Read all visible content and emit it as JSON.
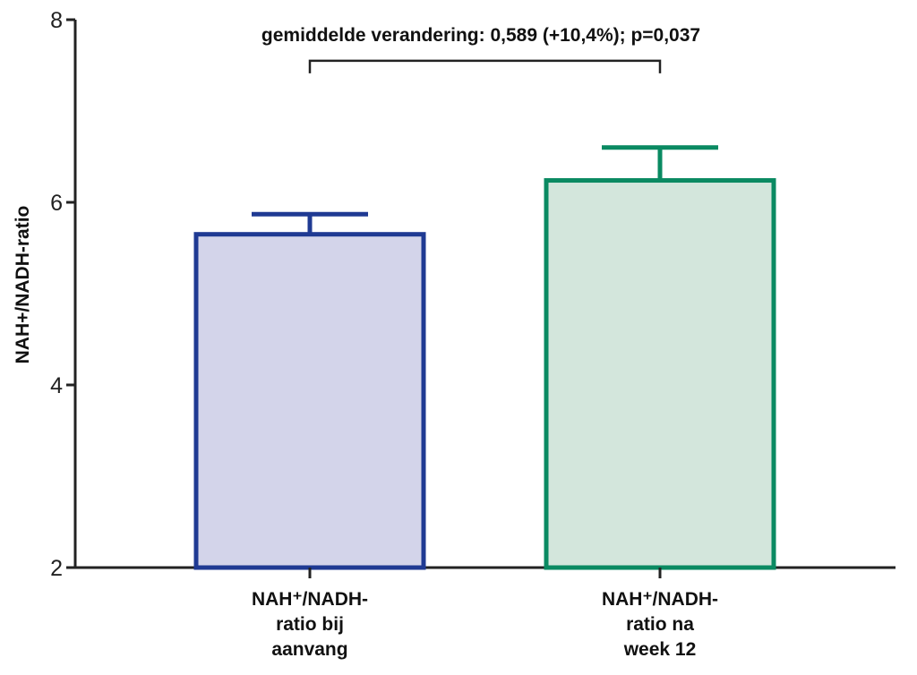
{
  "chart_data": {
    "type": "bar",
    "ylabel": "NAH+/NADH-ratio",
    "ylim": [
      2,
      8
    ],
    "yticks": [
      "2",
      "4",
      "6",
      "8"
    ],
    "categories": [
      [
        "NAH⁺/NADH-",
        "ratio bij",
        "aanvang"
      ],
      [
        "NAH⁺/NADH-",
        "ratio na",
        "week 12"
      ]
    ],
    "values": [
      5.65,
      6.24
    ],
    "error_upper": [
      5.87,
      6.6
    ],
    "colors": {
      "bar_fills": [
        "#d3d4ea",
        "#d3e6dc"
      ],
      "bar_strokes": [
        "#1f3a93",
        "#0a8a62"
      ]
    },
    "annotation": {
      "text": "gemiddelde verandering: 0,589 (+10,4%); p=0,037",
      "bracket_y": 7.55
    }
  }
}
